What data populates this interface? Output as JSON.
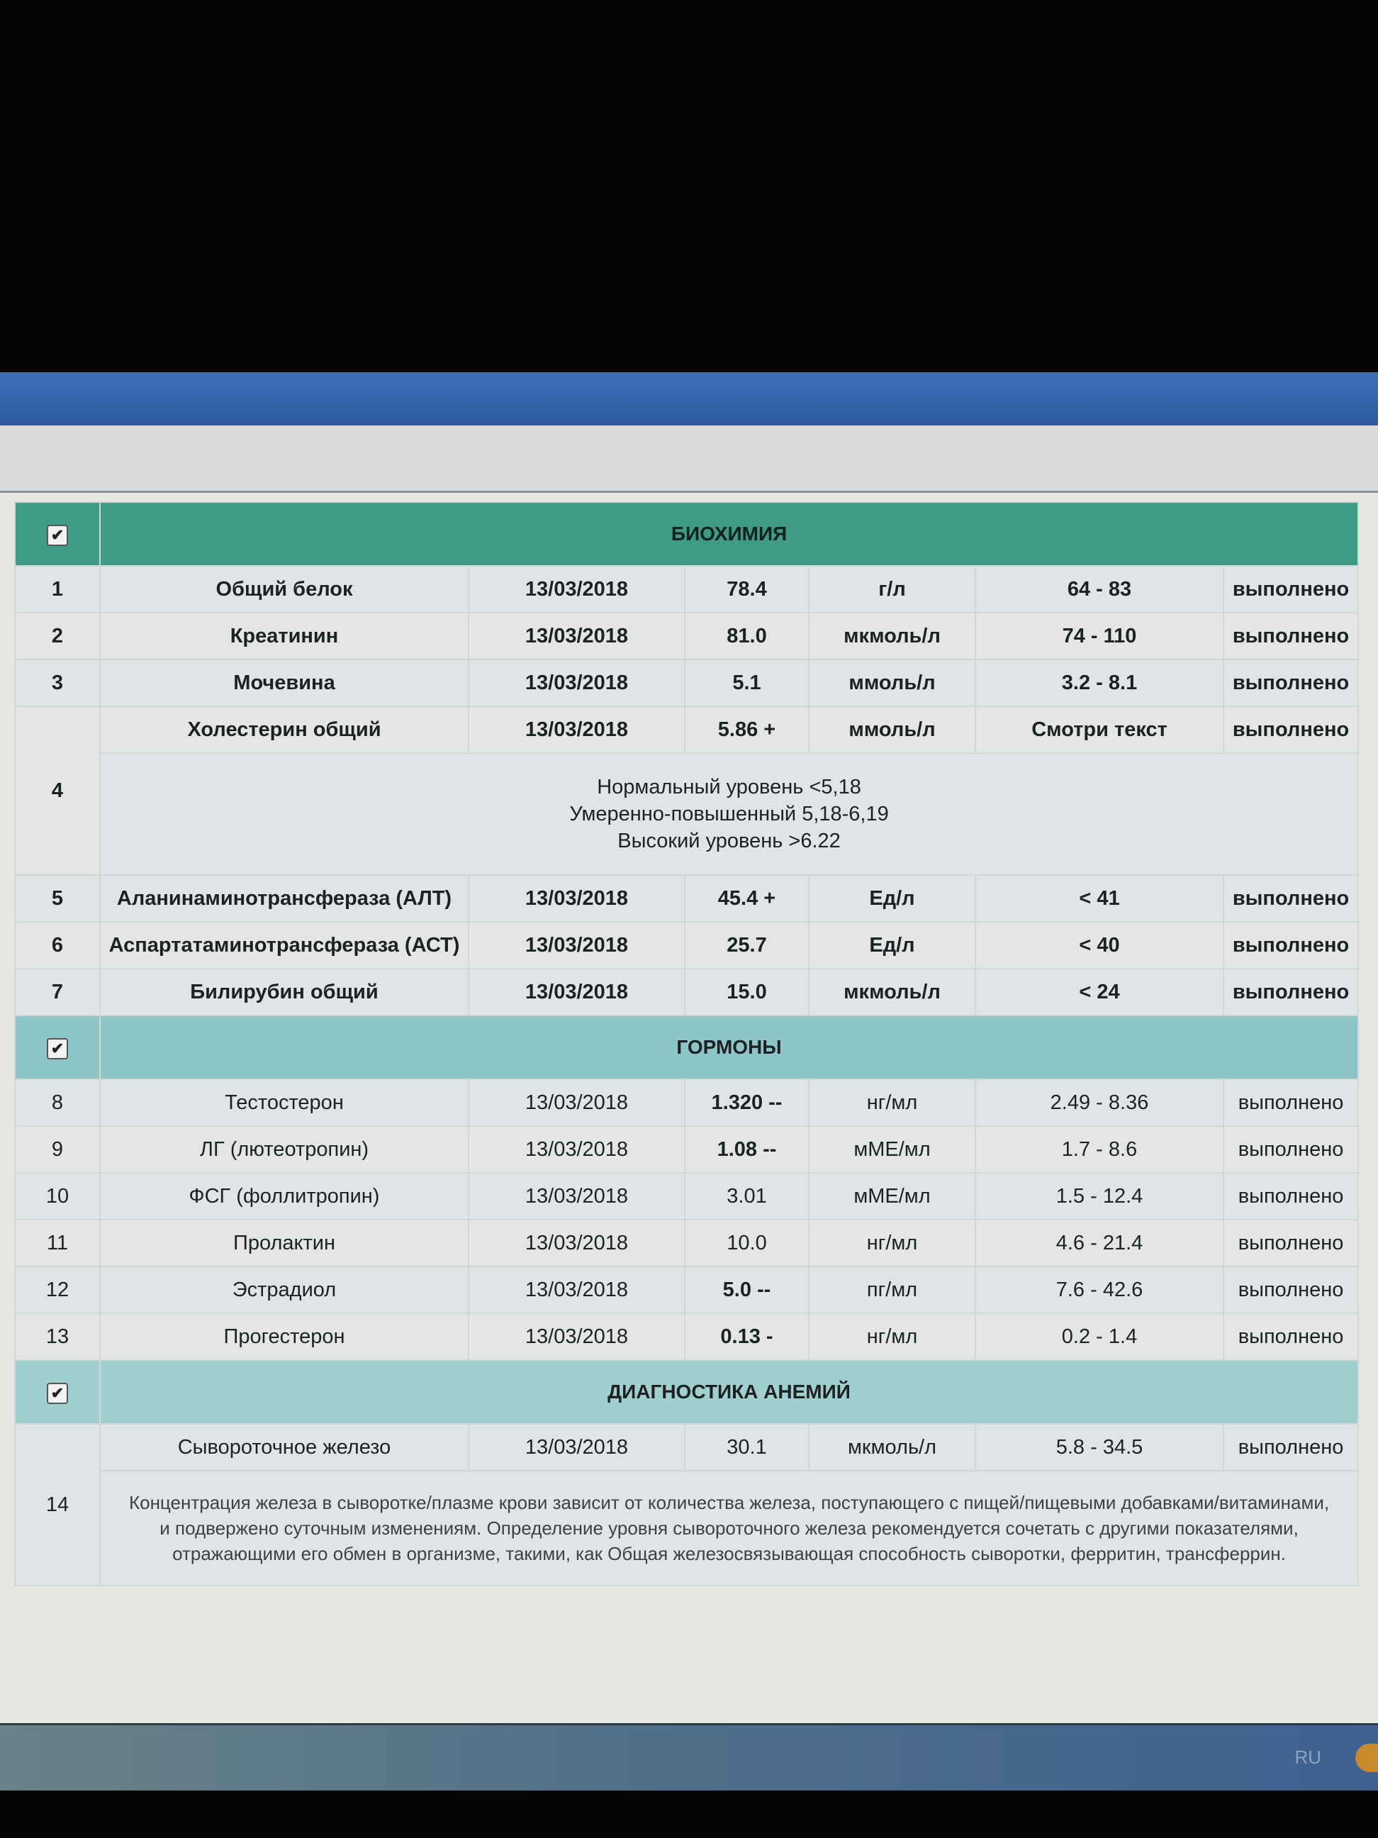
{
  "sections": [
    {
      "title": "БИОХИМИЯ",
      "rows": [
        {
          "num": "1",
          "name": "Общий белок",
          "date": "13/03/2018",
          "value": "78.4",
          "unit": "г/л",
          "ref": "64 - 83",
          "status": "выполнено"
        },
        {
          "num": "2",
          "name": "Креатинин",
          "date": "13/03/2018",
          "value": "81.0",
          "unit": "мкмоль/л",
          "ref": "74 - 110",
          "status": "выполнено"
        },
        {
          "num": "3",
          "name": "Мочевина",
          "date": "13/03/2018",
          "value": "5.1",
          "unit": "ммоль/л",
          "ref": "3.2 - 8.1",
          "status": "выполнено"
        },
        {
          "num": "4",
          "name": "Холестерин общий",
          "date": "13/03/2018",
          "value": "5.86 +",
          "unit": "ммоль/л",
          "ref": "Смотри текст",
          "status": "выполнено",
          "note": [
            "Нормальный уровень <5,18",
            "Умеренно-повышенный 5,18-6,19",
            "Высокий уровень >6.22"
          ]
        },
        {
          "num": "5",
          "name": "Аланинаминотрансфераза (АЛТ)",
          "date": "13/03/2018",
          "value": "45.4 +",
          "unit": "Ед/л",
          "ref": "< 41",
          "status": "выполнено"
        },
        {
          "num": "6",
          "name": "Аспартатаминотрансфераза (АСТ)",
          "date": "13/03/2018",
          "value": "25.7",
          "unit": "Ед/л",
          "ref": "< 40",
          "status": "выполнено"
        },
        {
          "num": "7",
          "name": "Билирубин общий",
          "date": "13/03/2018",
          "value": "15.0",
          "unit": "мкмоль/л",
          "ref": "< 24",
          "status": "выполнено"
        }
      ]
    },
    {
      "title": "ГОРМОНЫ",
      "rows": [
        {
          "num": "8",
          "name": "Тестостерон",
          "date": "13/03/2018",
          "value": "1.320 --",
          "unit": "нг/мл",
          "ref": "2.49 - 8.36",
          "status": "выполнено"
        },
        {
          "num": "9",
          "name": "ЛГ (лютеотропин)",
          "date": "13/03/2018",
          "value": "1.08 --",
          "unit": "мМЕ/мл",
          "ref": "1.7 - 8.6",
          "status": "выполнено"
        },
        {
          "num": "10",
          "name": "ФСГ (фоллитропин)",
          "date": "13/03/2018",
          "value": "3.01",
          "unit": "мМЕ/мл",
          "ref": "1.5 - 12.4",
          "status": "выполнено"
        },
        {
          "num": "11",
          "name": "Пролактин",
          "date": "13/03/2018",
          "value": "10.0",
          "unit": "нг/мл",
          "ref": "4.6 - 21.4",
          "status": "выполнено"
        },
        {
          "num": "12",
          "name": "Эстрадиол",
          "date": "13/03/2018",
          "value": "5.0 --",
          "unit": "пг/мл",
          "ref": "7.6 - 42.6",
          "status": "выполнено"
        },
        {
          "num": "13",
          "name": "Прогестерон",
          "date": "13/03/2018",
          "value": "0.13 -",
          "unit": "нг/мл",
          "ref": "0.2 - 1.4",
          "status": "выполнено"
        }
      ]
    },
    {
      "title": "ДИАГНОСТИКА АНЕМИЙ",
      "rows": [
        {
          "num": "14",
          "name": "Сывороточное железо",
          "date": "13/03/2018",
          "value": "30.1",
          "unit": "мкмоль/л",
          "ref": "5.8 - 34.5",
          "status": "выполнено",
          "note": [
            "Концентрация железа в сыворотке/плазме крови зависит от количества железа, поступающего с пищей/пищевыми добавками/витаминами, и подвержено суточным изменениям. Определение уровня сывороточного железа рекомендуется сочетать с другими показателями, отражающими его обмен в организме, такими, как Общая железосвязывающая способность сыворотки, ферритин, трансферрин."
          ]
        }
      ]
    }
  ],
  "taskbar": {
    "language": "RU"
  },
  "colors": {
    "biochem_header": "#3f9b86",
    "hormones_header": "#8ec6c8",
    "anemia_header": "#9fcfcf"
  }
}
